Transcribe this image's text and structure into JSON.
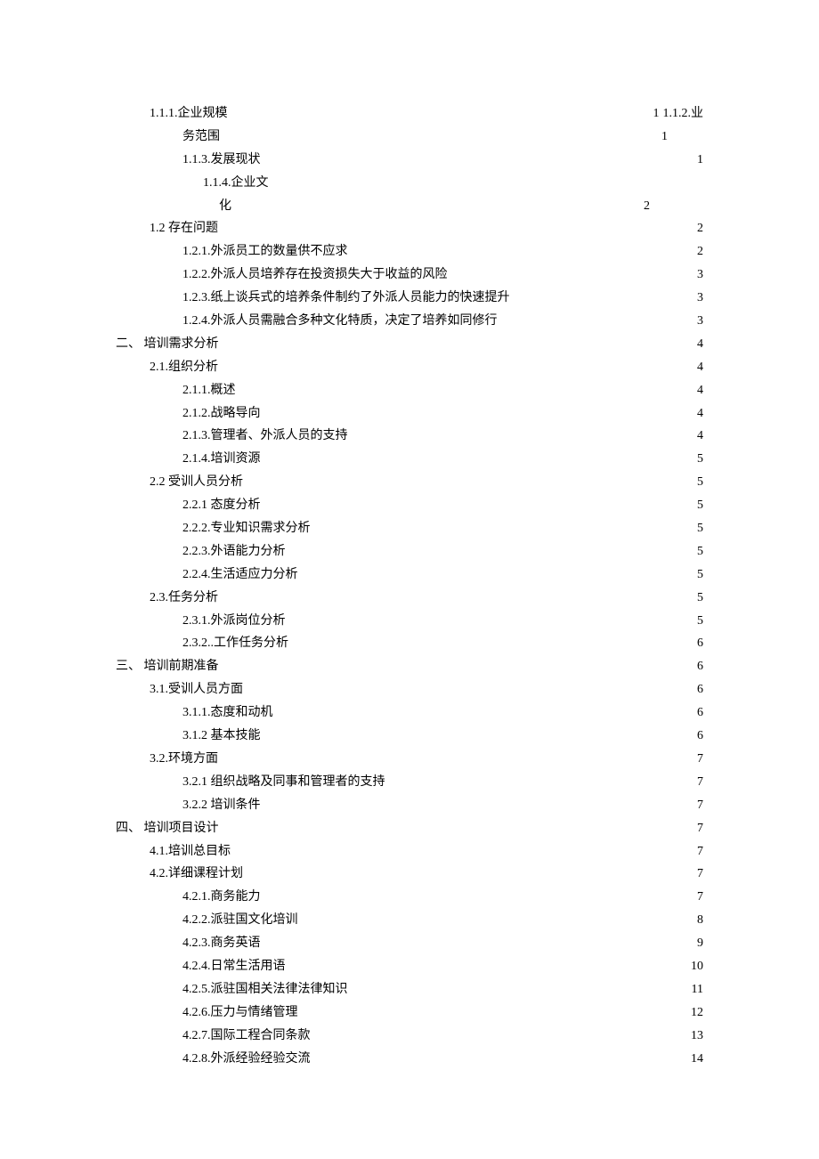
{
  "toc": {
    "text_color": "#000000",
    "background_color": "#ffffff",
    "font_size_pt": 10.5,
    "entries": [
      {
        "type": "split",
        "indent": 1,
        "label1": "1.1.1.企业规模",
        "page1": "1",
        "label2": " 1.1.2.业"
      },
      {
        "type": "wrap",
        "indent": 2,
        "label": "务范围",
        "page": "1"
      },
      {
        "type": "line",
        "indent": 2,
        "label": "1.1.3.发展现状",
        "page": "1"
      },
      {
        "type": "textonly",
        "indent": 3,
        "label": "1.1.4.企业文"
      },
      {
        "type": "wrap",
        "indent": 3,
        "label": "化",
        "page": "2",
        "extra_indent": 18
      },
      {
        "type": "line",
        "indent": 1,
        "label": "1.2 存在问题",
        "page": "2"
      },
      {
        "type": "line",
        "indent": 2,
        "label": "1.2.1.外派员工的数量供不应求",
        "page": "2"
      },
      {
        "type": "line",
        "indent": 2,
        "label": "1.2.2.外派人员培养存在投资损失大于收益的风险",
        "page": "3"
      },
      {
        "type": "line",
        "indent": 2,
        "label": "1.2.3.纸上谈兵式的培养条件制约了外派人员能力的快速提升",
        "page": "3"
      },
      {
        "type": "line",
        "indent": 2,
        "label": "1.2.4.外派人员需融合多种文化特质，决定了培养如同修行",
        "page": "3"
      },
      {
        "type": "line",
        "indent": 0,
        "label": "二、  培训需求分析",
        "page": "4"
      },
      {
        "type": "line",
        "indent": 1,
        "label": "2.1.组织分析",
        "page": "4"
      },
      {
        "type": "line",
        "indent": 2,
        "label": "2.1.1.概述",
        "page": "4"
      },
      {
        "type": "line",
        "indent": 2,
        "label": "2.1.2.战略导向",
        "page": "4"
      },
      {
        "type": "line",
        "indent": 2,
        "label": "2.1.3.管理者、外派人员的支持",
        "page": "4"
      },
      {
        "type": "line",
        "indent": 2,
        "label": "2.1.4.培训资源",
        "page": "5"
      },
      {
        "type": "line",
        "indent": 1,
        "label": "2.2 受训人员分析",
        "page": "5"
      },
      {
        "type": "line",
        "indent": 2,
        "label": "2.2.1 态度分析",
        "page": "5"
      },
      {
        "type": "line",
        "indent": 2,
        "label": "2.2.2.专业知识需求分析",
        "page": "5"
      },
      {
        "type": "line",
        "indent": 2,
        "label": "2.2.3.外语能力分析",
        "page": "5"
      },
      {
        "type": "line",
        "indent": 2,
        "label": "2.2.4.生活适应力分析",
        "page": "5"
      },
      {
        "type": "line",
        "indent": 1,
        "label": "2.3.任务分析",
        "page": "5"
      },
      {
        "type": "line",
        "indent": 2,
        "label": "2.3.1.外派岗位分析",
        "page": "5"
      },
      {
        "type": "line",
        "indent": 2,
        "label": "2.3.2..工作任务分析",
        "page": "6"
      },
      {
        "type": "line",
        "indent": 0,
        "label": "三、  培训前期准备",
        "page": "6"
      },
      {
        "type": "line",
        "indent": 1,
        "label": "3.1.受训人员方面",
        "page": "6"
      },
      {
        "type": "line",
        "indent": 2,
        "label": "3.1.1.态度和动机",
        "page": "6"
      },
      {
        "type": "line",
        "indent": 2,
        "label": "3.1.2 基本技能",
        "page": "6"
      },
      {
        "type": "line",
        "indent": 1,
        "label": "3.2.环境方面",
        "page": " 7"
      },
      {
        "type": "line",
        "indent": 2,
        "label": "3.2.1 组织战略及同事和管理者的支持",
        "page": "7"
      },
      {
        "type": "line",
        "indent": 2,
        "label": "3.2.2 培训条件",
        "page": "7"
      },
      {
        "type": "line",
        "indent": 0,
        "label": "四、  培训项目设计",
        "page": "7"
      },
      {
        "type": "line",
        "indent": 1,
        "label": "4.1.培训总目标",
        "page": "7"
      },
      {
        "type": "line",
        "indent": 1,
        "label": "4.2.详细课程计划",
        "page": "7"
      },
      {
        "type": "line",
        "indent": 2,
        "label": "4.2.1.商务能力",
        "page": "7"
      },
      {
        "type": "line",
        "indent": 2,
        "label": "4.2.2.派驻国文化培训",
        "page": "8"
      },
      {
        "type": "line",
        "indent": 2,
        "label": "4.2.3.商务英语",
        "page": "9"
      },
      {
        "type": "line",
        "indent": 2,
        "label": "4.2.4.日常生活用语",
        "page": "10"
      },
      {
        "type": "line",
        "indent": 2,
        "label": "4.2.5.派驻国相关法律法律知识",
        "page": "11"
      },
      {
        "type": "line",
        "indent": 2,
        "label": "4.2.6.压力与情绪管理",
        "page": "12"
      },
      {
        "type": "line",
        "indent": 2,
        "label": "4.2.7.国际工程合同条款",
        "page": "13"
      },
      {
        "type": "line",
        "indent": 2,
        "label": "4.2.8.外派经验经验交流",
        "page": "14"
      }
    ]
  }
}
